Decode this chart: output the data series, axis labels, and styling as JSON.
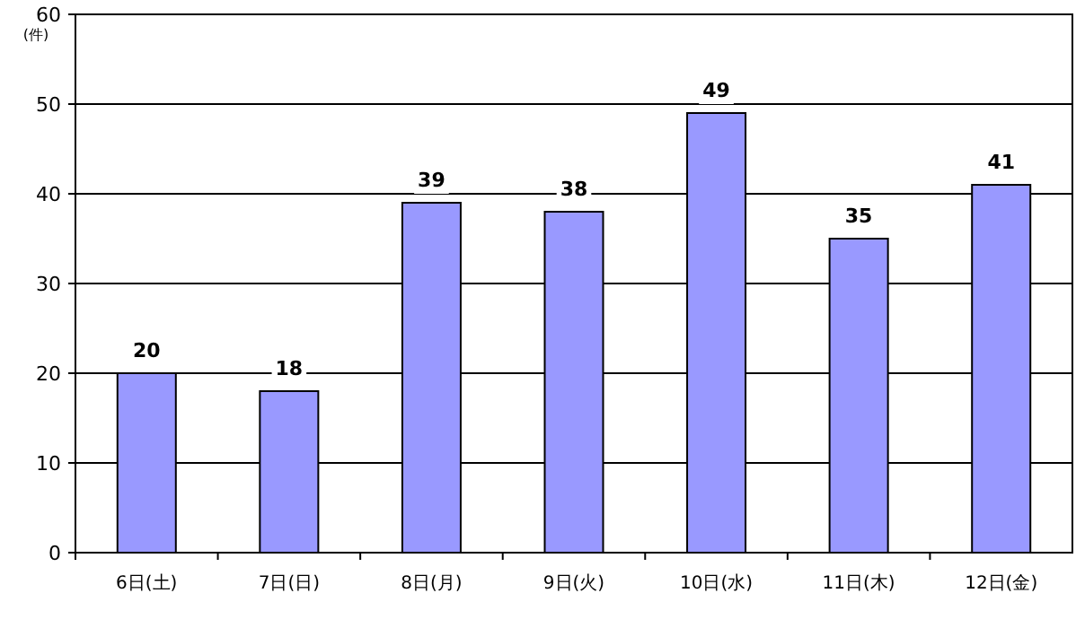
{
  "chart_data": {
    "type": "bar",
    "ylabel": "(件)",
    "categories": [
      "6日(土)",
      "7日(日)",
      "8日(月)",
      "9日(火)",
      "10日(水)",
      "11日(木)",
      "12日(金)"
    ],
    "values": [
      20,
      18,
      39,
      38,
      49,
      35,
      41
    ],
    "color": "#9999ff",
    "ylim": [
      0,
      60
    ],
    "yticks": [
      0,
      10,
      20,
      30,
      40,
      50,
      60
    ],
    "grid": "y",
    "data_labels": true
  }
}
